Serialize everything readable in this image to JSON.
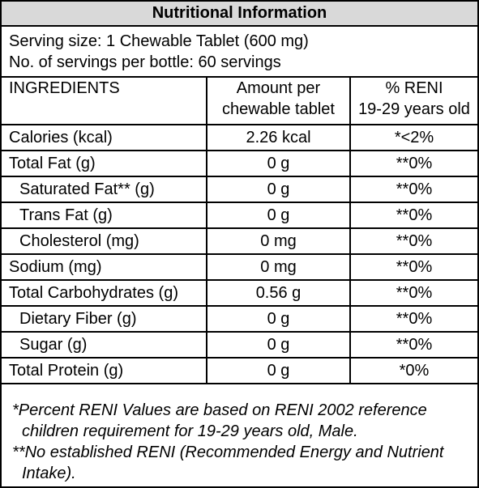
{
  "title": "Nutritional Information",
  "serving": {
    "size": "Serving size: 1 Chewable Tablet (600 mg)",
    "per_bottle": "No. of servings per bottle: 60 servings"
  },
  "table": {
    "headers": {
      "ingredients": "INGREDIENTS",
      "amount_line1": "Amount per",
      "amount_line2": "chewable tablet",
      "reni_line1": "% RENI",
      "reni_line2": "19-29 years old"
    },
    "rows": [
      {
        "name": "Calories (kcal)",
        "amount": "2.26 kcal",
        "reni": "*<2%"
      },
      {
        "name": "Total Fat (g)",
        "amount": "0 g",
        "reni": "**0%"
      },
      {
        "name": "Saturated Fat** (g)",
        "amount": "0 g",
        "reni": "**0%"
      },
      {
        "name": "Trans Fat (g)",
        "amount": "0 g",
        "reni": "**0%"
      },
      {
        "name": "Cholesterol (mg)",
        "amount": "0 mg",
        "reni": "**0%"
      },
      {
        "name": "Sodium (mg)",
        "amount": "0 mg",
        "reni": "**0%"
      },
      {
        "name": "Total Carbohydrates (g)",
        "amount": "0.56 g",
        "reni": "**0%"
      },
      {
        "name": "Dietary Fiber (g)",
        "amount": "0 g",
        "reni": "**0%"
      },
      {
        "name": "Sugar (g)",
        "amount": "0 g",
        "reni": "**0%"
      },
      {
        "name": "Total Protein (g)",
        "amount": "0 g",
        "reni": "*0%"
      }
    ]
  },
  "footnotes": {
    "note1": "*Percent RENI Values are based on RENI 2002 reference children requirement for 19-29 years old, Male.",
    "note2": "**No established RENI (Recommended Energy and Nutrient Intake)."
  },
  "colors": {
    "title_background": "#d9d9d9",
    "border": "#000000",
    "text": "#000000"
  }
}
